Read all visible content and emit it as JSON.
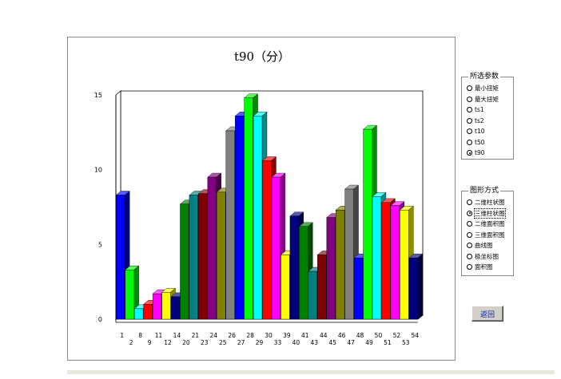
{
  "chart_data": {
    "type": "bar",
    "title": "t90（分）",
    "categories": [
      "1",
      "2",
      "8",
      "9",
      "11",
      "12",
      "14",
      "20",
      "21",
      "23",
      "24",
      "25",
      "26",
      "27",
      "28",
      "29",
      "30",
      "33",
      "39",
      "40",
      "41",
      "43",
      "44",
      "45",
      "46",
      "47",
      "48",
      "49",
      "50",
      "51",
      "52",
      "53",
      "54"
    ],
    "values": [
      8.3,
      3.3,
      0.7,
      1.0,
      1.7,
      1.8,
      1.5,
      7.7,
      8.3,
      8.4,
      9.5,
      8.5,
      12.6,
      13.6,
      14.8,
      13.6,
      10.6,
      9.5,
      4.3,
      6.9,
      6.2,
      3.2,
      4.3,
      6.8,
      7.3,
      8.7,
      4.1,
      12.7,
      8.2,
      7.8,
      7.6,
      7.3,
      4.1
    ],
    "colors": [
      "#0000ff",
      "#00ff00",
      "#00ffff",
      "#ff0000",
      "#ff00ff",
      "#ffff00",
      "#000080",
      "#008000",
      "#008080",
      "#800000",
      "#800080",
      "#808000",
      "#808080",
      "#0000ff",
      "#00ff00",
      "#00ffff",
      "#ff0000",
      "#ff00ff",
      "#ffff00",
      "#000080",
      "#008000",
      "#008080",
      "#800000",
      "#800080",
      "#808000",
      "#808080",
      "#0000ff",
      "#00ff00",
      "#00ffff",
      "#ff0000",
      "#ff00ff",
      "#ffff00",
      "#000080"
    ],
    "ylim": [
      0,
      15
    ],
    "yticks": [
      "0",
      "5",
      "10",
      "15"
    ],
    "grid": false,
    "xlabel": "",
    "ylabel": ""
  },
  "params_group": {
    "title": "所选参数",
    "options": [
      "最小扭矩",
      "最大扭矩",
      "ts1",
      "ts2",
      "t10",
      "t50",
      "t90"
    ],
    "selected": 6
  },
  "chart_type_group": {
    "title": "图形方式",
    "options": [
      "二维柱状图",
      "三维柱状图",
      "二维面积图",
      "三维面积图",
      "曲线图",
      "极坐标图",
      "面积图"
    ],
    "selected": 1
  },
  "back_button": {
    "label": "返回"
  }
}
